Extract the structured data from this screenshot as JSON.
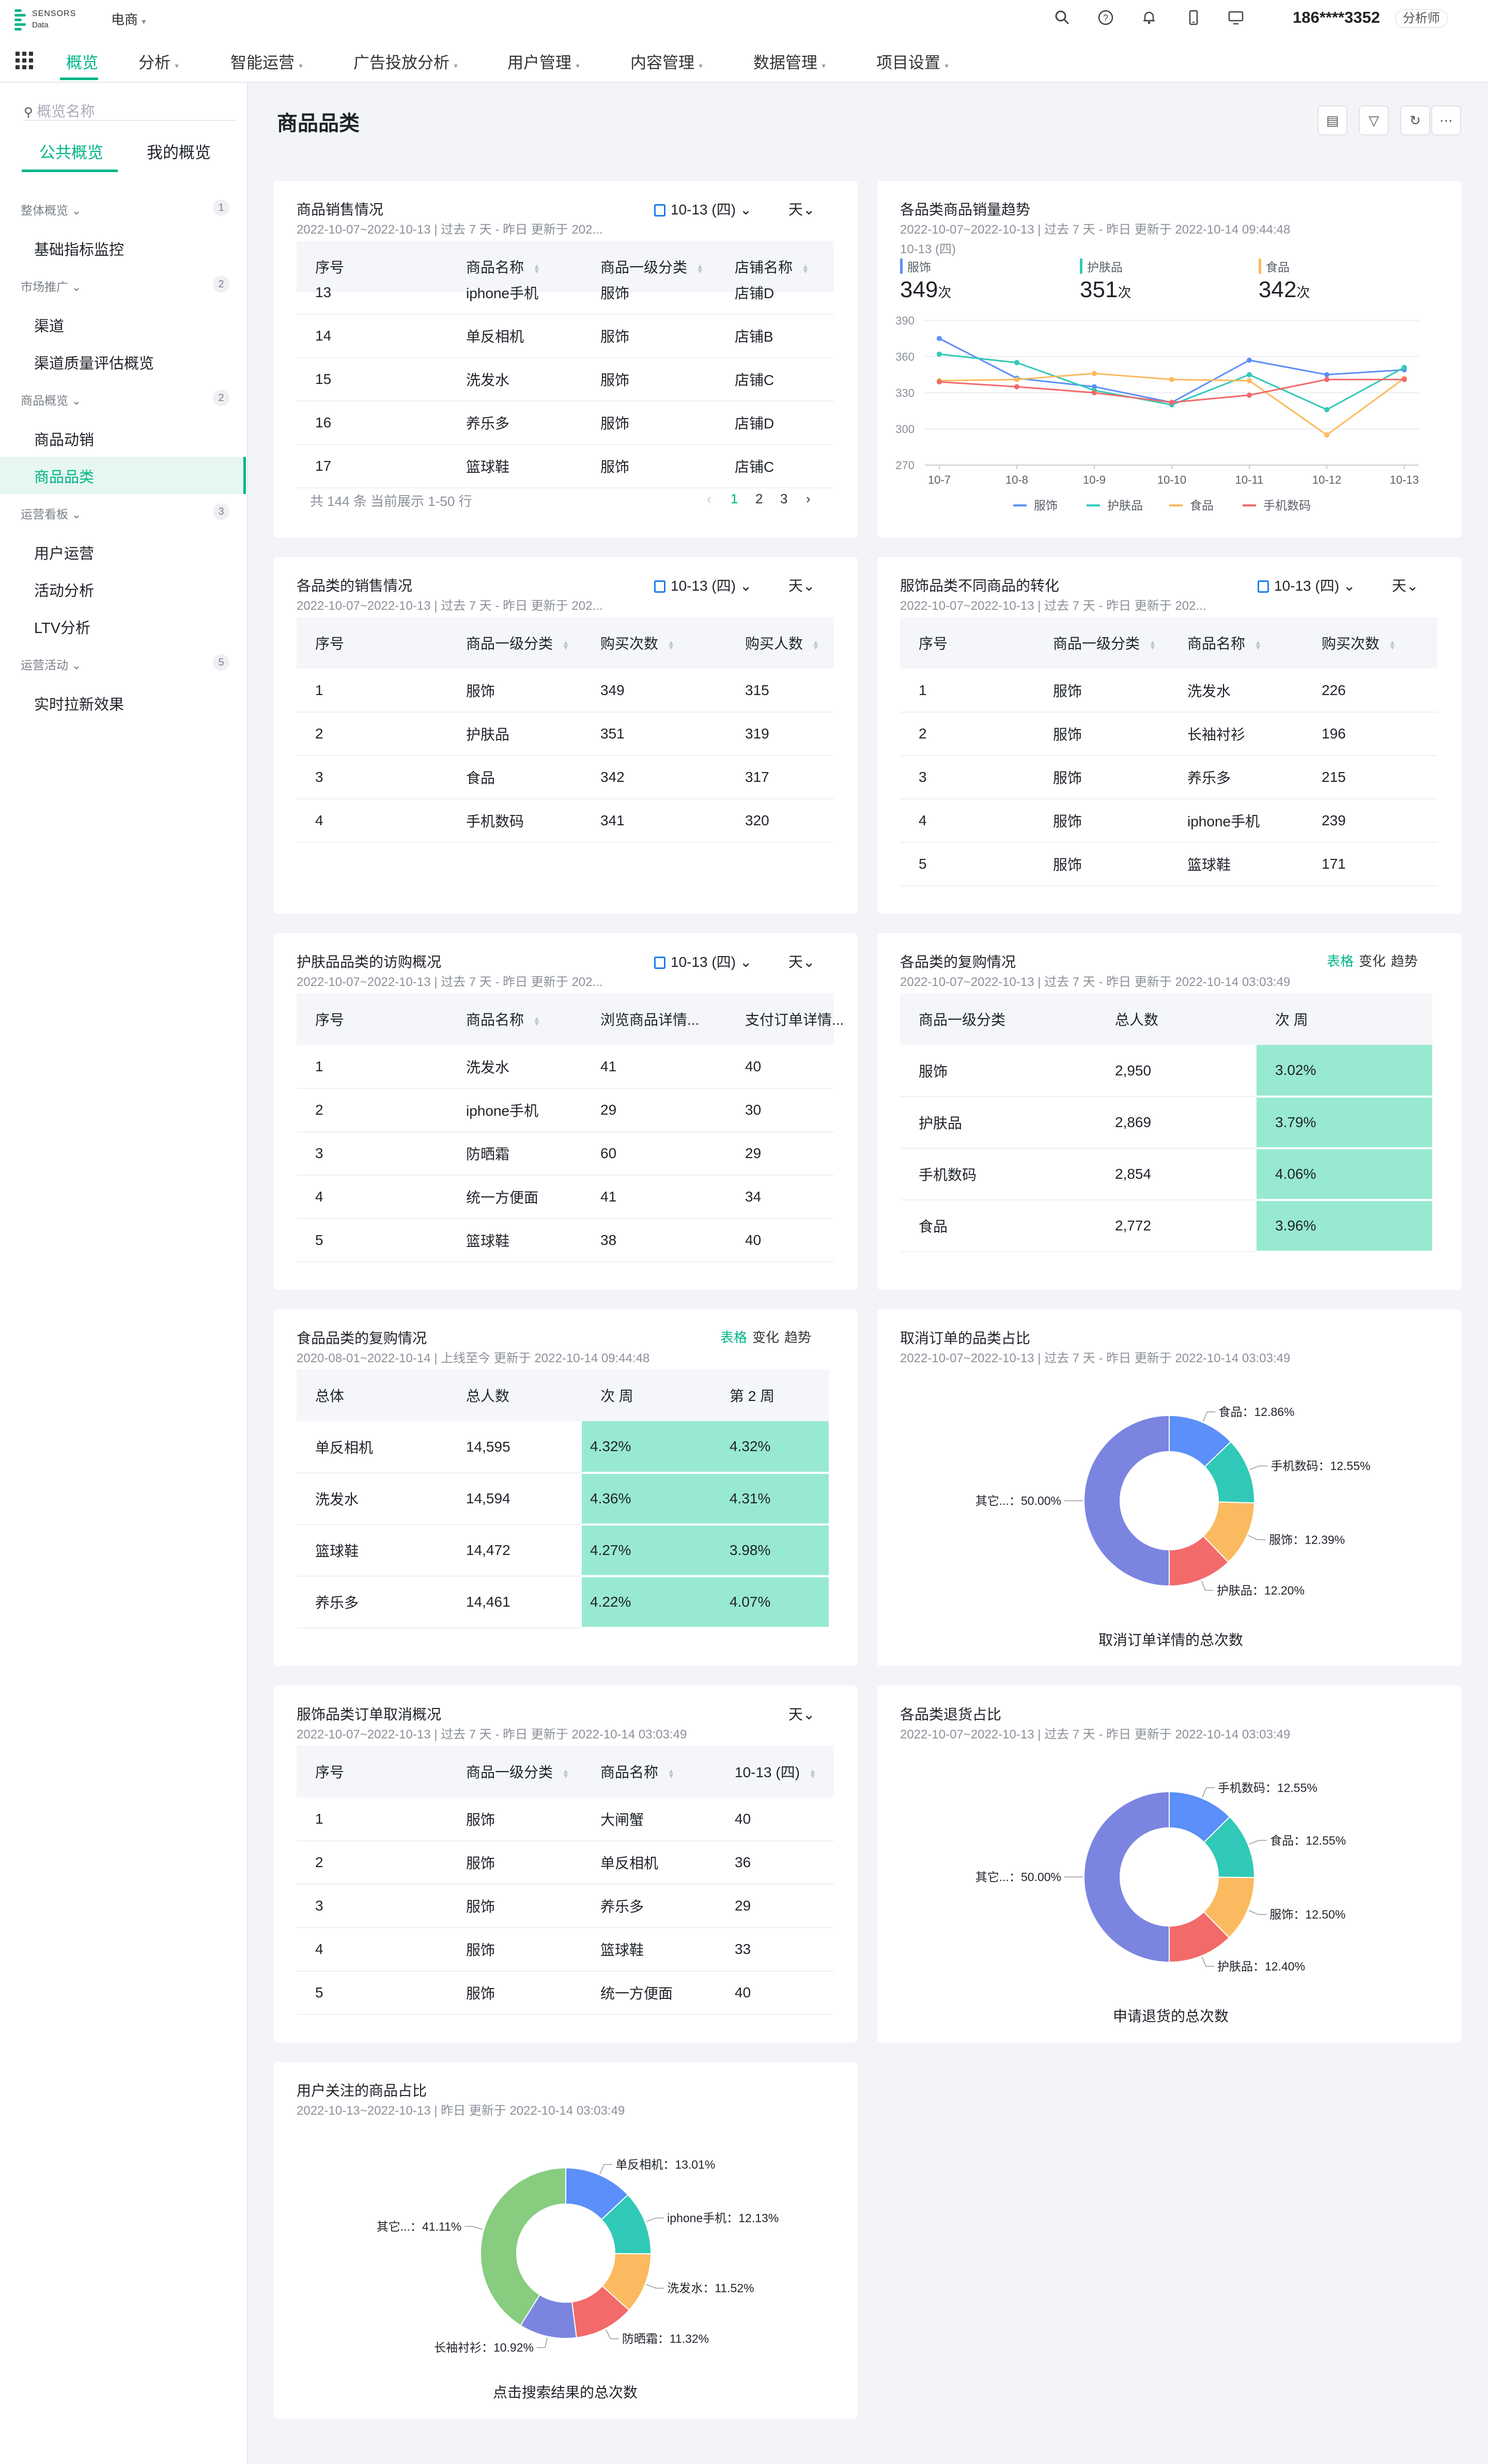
{
  "app": {
    "logo_line1": "SENSORS",
    "logo_line2": "Data",
    "project": "电商",
    "phone": "186****3352",
    "role": "分析师"
  },
  "nav": [
    "概览",
    "分析",
    "智能运营",
    "广告投放分析",
    "用户管理",
    "内容管理",
    "数据管理",
    "项目设置"
  ],
  "sidebar": {
    "search_placeholder": "概览名称",
    "tabs": [
      "公共概览",
      "我的概览"
    ],
    "groups": [
      {
        "label": "整体概览",
        "count": "1",
        "items": [
          "基础指标监控"
        ]
      },
      {
        "label": "市场推广",
        "count": "2",
        "items": [
          "渠道",
          "渠道质量评估概览"
        ]
      },
      {
        "label": "商品概览",
        "count": "2",
        "items": [
          "商品动销",
          "商品品类"
        ]
      },
      {
        "label": "运营看板",
        "count": "3",
        "items": [
          "用户运营",
          "活动分析",
          "LTV分析"
        ]
      },
      {
        "label": "运营活动",
        "count": "5",
        "items": [
          "实时拉新效果"
        ]
      }
    ]
  },
  "page": {
    "title": "商品品类"
  },
  "common": {
    "date": "10-13 (四)",
    "day": "天",
    "view_table": "表格",
    "view_change": "变化",
    "view_trend": "趋势"
  },
  "cards": {
    "c1": {
      "title": "商品销售情况",
      "sub": "2022-10-07~2022-10-13 | 过去 7 天 - 昨日 更新于 202...",
      "headers": [
        "序号",
        "商品名称",
        "商品一级分类",
        "店铺名称"
      ],
      "rows": [
        [
          "13",
          "iphone手机",
          "服饰",
          "店铺D"
        ],
        [
          "14",
          "单反相机",
          "服饰",
          "店铺B"
        ],
        [
          "15",
          "洗发水",
          "服饰",
          "店铺C"
        ],
        [
          "16",
          "养乐多",
          "服饰",
          "店铺D"
        ],
        [
          "17",
          "篮球鞋",
          "服饰",
          "店铺C"
        ]
      ],
      "pager": "共 144 条 当前展示 1-50 行",
      "pages": [
        "1",
        "2",
        "3"
      ]
    },
    "c2": {
      "title": "各品类商品销量趋势",
      "sub": "2022-10-07~2022-10-13 | 过去 7 天 - 昨日 更新于 2022-10-14 09:44:48",
      "date_label": "10-13 (四)",
      "tops": [
        {
          "name": "服饰",
          "value": "349",
          "unit": "次"
        },
        {
          "name": "护肤品",
          "value": "351",
          "unit": "次"
        },
        {
          "name": "食品",
          "value": "342",
          "unit": "次"
        }
      ]
    },
    "c3": {
      "title": "各品类的销售情况",
      "sub": "2022-10-07~2022-10-13 | 过去 7 天 - 昨日 更新于 202...",
      "headers": [
        "序号",
        "商品一级分类",
        "购买次数",
        "购买人数"
      ],
      "rows": [
        [
          "1",
          "服饰",
          "349",
          "315"
        ],
        [
          "2",
          "护肤品",
          "351",
          "319"
        ],
        [
          "3",
          "食品",
          "342",
          "317"
        ],
        [
          "4",
          "手机数码",
          "341",
          "320"
        ]
      ]
    },
    "c4": {
      "title": "服饰品类不同商品的转化",
      "sub": "2022-10-07~2022-10-13 | 过去 7 天 - 昨日 更新于 202...",
      "headers": [
        "序号",
        "商品一级分类",
        "商品名称",
        "购买次数"
      ],
      "rows": [
        [
          "1",
          "服饰",
          "洗发水",
          "226"
        ],
        [
          "2",
          "服饰",
          "长袖衬衫",
          "196"
        ],
        [
          "3",
          "服饰",
          "养乐多",
          "215"
        ],
        [
          "4",
          "服饰",
          "iphone手机",
          "239"
        ],
        [
          "5",
          "服饰",
          "篮球鞋",
          "171"
        ]
      ]
    },
    "c5": {
      "title": "护肤品品类的访购概况",
      "sub": "2022-10-07~2022-10-13 | 过去 7 天 - 昨日 更新于 202...",
      "headers": [
        "序号",
        "商品名称",
        "浏览商品详情...",
        "支付订单详情..."
      ],
      "rows": [
        [
          "1",
          "洗发水",
          "41",
          "40"
        ],
        [
          "2",
          "iphone手机",
          "29",
          "30"
        ],
        [
          "3",
          "防晒霜",
          "60",
          "29"
        ],
        [
          "4",
          "统一方便面",
          "41",
          "34"
        ],
        [
          "5",
          "篮球鞋",
          "38",
          "40"
        ]
      ]
    },
    "c6": {
      "title": "各品类的复购情况",
      "sub": "2022-10-07~2022-10-13 | 过去 7 天 - 昨日 更新于 2022-10-14 03:03:49",
      "headers": [
        "商品一级分类",
        "总人数",
        "次 周"
      ],
      "rows": [
        [
          "服饰",
          "2,950",
          "3.02%"
        ],
        [
          "护肤品",
          "2,869",
          "3.79%"
        ],
        [
          "手机数码",
          "2,854",
          "4.06%"
        ],
        [
          "食品",
          "2,772",
          "3.96%"
        ]
      ]
    },
    "c7": {
      "title": "食品品类的复购情况",
      "sub": "2020-08-01~2022-10-14 | 上线至今 更新于 2022-10-14 09:44:48",
      "headers": [
        "总体",
        "总人数",
        "次 周",
        "第 2 周"
      ],
      "rows": [
        [
          "单反相机",
          "14,595",
          "4.32%",
          "4.32%"
        ],
        [
          "洗发水",
          "14,594",
          "4.36%",
          "4.31%"
        ],
        [
          "篮球鞋",
          "14,472",
          "4.27%",
          "3.98%"
        ],
        [
          "养乐多",
          "14,461",
          "4.22%",
          "4.07%"
        ]
      ]
    },
    "c8": {
      "title": "取消订单的品类占比",
      "sub": "2022-10-07~2022-10-13 | 过去 7 天 - 昨日 更新于 2022-10-14 03:03:49",
      "caption": "取消订单详情的总次数"
    },
    "c9": {
      "title": "服饰品类订单取消概况",
      "sub": "2022-10-07~2022-10-13 | 过去 7 天 - 昨日 更新于 2022-10-14 03:03:49",
      "headers": [
        "序号",
        "商品一级分类",
        "商品名称",
        "10-13 (四)"
      ],
      "rows": [
        [
          "1",
          "服饰",
          "大闸蟹",
          "40"
        ],
        [
          "2",
          "服饰",
          "单反相机",
          "36"
        ],
        [
          "3",
          "服饰",
          "养乐多",
          "29"
        ],
        [
          "4",
          "服饰",
          "篮球鞋",
          "33"
        ],
        [
          "5",
          "服饰",
          "统一方便面",
          "40"
        ]
      ]
    },
    "c10": {
      "title": "各品类退货占比",
      "sub": "2022-10-07~2022-10-13 | 过去 7 天 - 昨日 更新于 2022-10-14 03:03:49",
      "caption": "申请退货的总次数"
    },
    "c11": {
      "title": "用户关注的商品占比",
      "sub": "2022-10-13~2022-10-13 | 昨日 更新于 2022-10-14 03:03:49",
      "caption": "点击搜索结果的总次数"
    }
  },
  "chart_data": [
    {
      "type": "line",
      "x": [
        "10-7",
        "10-8",
        "10-9",
        "10-10",
        "10-11",
        "10-12",
        "10-13"
      ],
      "ylim": [
        270,
        390
      ],
      "yticks": [
        270,
        300,
        330,
        360,
        390
      ],
      "legend": "bottom",
      "series": [
        {
          "name": "服饰",
          "color": "#5b8ff9",
          "values": [
            375,
            342,
            335,
            322,
            357,
            345,
            349
          ]
        },
        {
          "name": "护肤品",
          "color": "#30c9b7",
          "values": [
            362,
            355,
            332,
            320,
            345,
            316,
            351
          ]
        },
        {
          "name": "食品",
          "color": "#fbba5f",
          "values": [
            340,
            341,
            346,
            341,
            340,
            295,
            342
          ]
        },
        {
          "name": "手机数码",
          "color": "#f26a6a",
          "values": [
            339,
            335,
            330,
            322,
            328,
            341,
            341
          ]
        }
      ]
    },
    {
      "type": "pie",
      "title": "取消订单的品类占比",
      "slices": [
        {
          "label": "食品",
          "value": 12.86,
          "color": "#5b8ff9"
        },
        {
          "label": "手机数码",
          "value": 12.55,
          "color": "#30c9b7"
        },
        {
          "label": "服饰",
          "value": 12.39,
          "color": "#fbba5f"
        },
        {
          "label": "护肤品",
          "value": 12.2,
          "color": "#f26a6a"
        },
        {
          "label": "其它...",
          "value": 50.0,
          "color": "#7b85e0"
        }
      ]
    },
    {
      "type": "pie",
      "title": "各品类退货占比",
      "slices": [
        {
          "label": "手机数码",
          "value": 12.55,
          "color": "#5b8ff9"
        },
        {
          "label": "食品",
          "value": 12.55,
          "color": "#30c9b7"
        },
        {
          "label": "服饰",
          "value": 12.5,
          "color": "#fbba5f"
        },
        {
          "label": "护肤品",
          "value": 12.4,
          "color": "#f26a6a"
        },
        {
          "label": "其它...",
          "value": 50.0,
          "color": "#7b85e0"
        }
      ]
    },
    {
      "type": "pie",
      "title": "用户关注的商品占比",
      "slices": [
        {
          "label": "单反相机",
          "value": 13.01,
          "color": "#5b8ff9"
        },
        {
          "label": "iphone手机",
          "value": 12.13,
          "color": "#30c9b7"
        },
        {
          "label": "洗发水",
          "value": 11.52,
          "color": "#fbba5f"
        },
        {
          "label": "防晒霜",
          "value": 11.32,
          "color": "#f26a6a"
        },
        {
          "label": "长袖衬衫",
          "value": 10.92,
          "color": "#7b85e0"
        },
        {
          "label": "其它...",
          "value": 41.11,
          "color": "#87cc7f"
        }
      ]
    }
  ]
}
